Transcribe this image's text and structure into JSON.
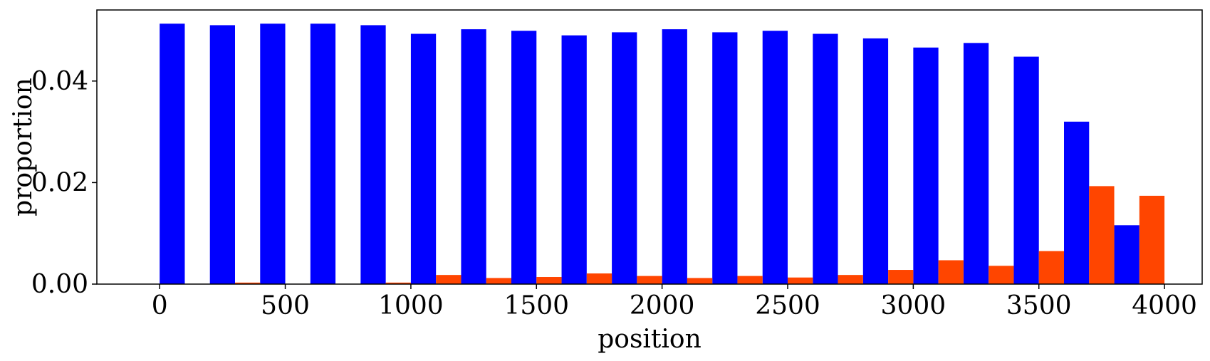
{
  "chart_data": {
    "type": "bar",
    "xlabel": "position",
    "ylabel": "proportion",
    "xlim": [
      -250,
      4150
    ],
    "ylim": [
      0,
      0.054
    ],
    "x_ticks": [
      0,
      500,
      1000,
      1500,
      2000,
      2500,
      3000,
      3500,
      4000
    ],
    "y_ticks": [
      0.0,
      0.02,
      0.04
    ],
    "y_tick_labels": [
      "0.00",
      "0.02",
      "0.04"
    ],
    "grid": false,
    "legend": "none",
    "bin_width": 200,
    "bins": [
      0,
      200,
      400,
      600,
      800,
      1000,
      1200,
      1400,
      1600,
      1800,
      2000,
      2200,
      2400,
      2600,
      2800,
      3000,
      3200,
      3400,
      3600,
      3800
    ],
    "series": [
      {
        "color": "#0000ff",
        "values": [
          0.0513,
          0.051,
          0.0513,
          0.0513,
          0.051,
          0.0493,
          0.0502,
          0.0499,
          0.049,
          0.0496,
          0.0502,
          0.0496,
          0.0499,
          0.0493,
          0.0484,
          0.0466,
          0.0475,
          0.0448,
          0.032,
          0.0116
        ]
      },
      {
        "color": "#ff4500",
        "values": [
          0.0,
          0.0003,
          0.0,
          0.0,
          0.0003,
          0.0018,
          0.0012,
          0.0014,
          0.0021,
          0.0016,
          0.0012,
          0.0016,
          0.0013,
          0.0018,
          0.0028,
          0.0047,
          0.0036,
          0.0065,
          0.0193,
          0.0174
        ]
      }
    ]
  }
}
